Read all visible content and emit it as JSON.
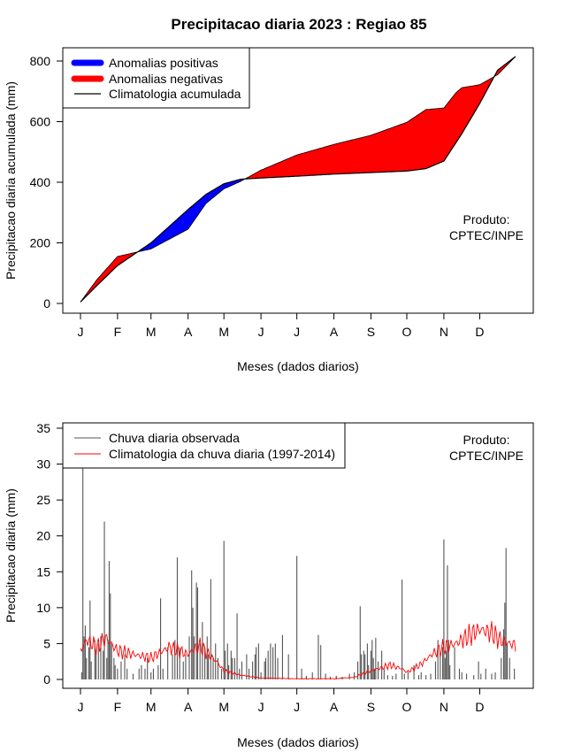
{
  "title": "Precipitacao diaria 2023 : Regiao 85",
  "months": [
    "J",
    "F",
    "M",
    "A",
    "M",
    "J",
    "J",
    "A",
    "S",
    "O",
    "N",
    "D"
  ],
  "chart_data": [
    {
      "type": "area",
      "title": "Precipitacao diaria 2023 : Regiao 85",
      "xlabel": "Meses (dados diarios)",
      "ylabel": "Precipitacao diaria acumulada (mm)",
      "ylim": [
        0,
        800
      ],
      "yticks": [
        0,
        200,
        400,
        600,
        800
      ],
      "legend": [
        {
          "label": "Anomalias positivas",
          "color": "#0000ff"
        },
        {
          "label": "Anomalias negativas",
          "color": "#ff0000"
        },
        {
          "label": "Climatologia acumulada",
          "color": "#000000"
        }
      ],
      "annotation": [
        "Produto:",
        "CPTEC/INPE"
      ],
      "x_day": [
        1,
        15,
        32,
        60,
        91,
        106,
        121,
        135,
        152,
        182,
        213,
        244,
        274,
        290,
        305,
        315,
        320,
        335,
        350,
        365
      ],
      "climatology": [
        5,
        60,
        125,
        200,
        310,
        360,
        395,
        410,
        414,
        420,
        427,
        432,
        437,
        445,
        470,
        530,
        560,
        660,
        770,
        815
      ],
      "observed": [
        5,
        80,
        155,
        180,
        245,
        330,
        378,
        403,
        440,
        490,
        525,
        555,
        598,
        640,
        645,
        695,
        712,
        722,
        755,
        815
      ]
    },
    {
      "type": "bar",
      "xlabel": "Meses (dados diarios)",
      "ylabel": "Precipitacao diaria (mm)",
      "ylim": [
        0,
        35
      ],
      "yticks": [
        0,
        5,
        10,
        15,
        20,
        25,
        30,
        35
      ],
      "legend": [
        {
          "label": "Chuva diaria observada",
          "color": "#555555"
        },
        {
          "label": "Climatologia da chuva diaria (1997-2014)",
          "color": "#ff0000"
        }
      ],
      "annotation": [
        "Produto:",
        "CPTEC/INPE"
      ],
      "rain_events": [
        [
          2,
          1.0
        ],
        [
          3,
          31.0
        ],
        [
          4,
          6.0
        ],
        [
          5,
          7.5
        ],
        [
          6,
          3.0
        ],
        [
          8,
          4.5
        ],
        [
          9,
          11.0
        ],
        [
          10,
          2.5
        ],
        [
          13,
          5.5
        ],
        [
          14,
          3.5
        ],
        [
          16,
          5.0
        ],
        [
          18,
          6.0
        ],
        [
          20,
          4.0
        ],
        [
          21,
          22.0
        ],
        [
          23,
          3.0
        ],
        [
          24,
          5.5
        ],
        [
          25,
          16.5
        ],
        [
          26,
          12.0
        ],
        [
          27,
          5.0
        ],
        [
          29,
          3.0
        ],
        [
          30,
          2.0
        ],
        [
          32,
          1.5
        ],
        [
          35,
          2.5
        ],
        [
          38,
          3.5
        ],
        [
          40,
          1.5
        ],
        [
          45,
          0.8
        ],
        [
          50,
          1.5
        ],
        [
          52,
          2.0
        ],
        [
          55,
          1.5
        ],
        [
          57,
          3.0
        ],
        [
          60,
          1.0
        ],
        [
          62,
          1.5
        ],
        [
          66,
          2.0
        ],
        [
          68,
          11.3
        ],
        [
          70,
          1.5
        ],
        [
          74,
          4.5
        ],
        [
          78,
          3.5
        ],
        [
          80,
          5.5
        ],
        [
          82,
          17.0
        ],
        [
          84,
          4.5
        ],
        [
          87,
          2.5
        ],
        [
          89,
          3.5
        ],
        [
          92,
          6.0
        ],
        [
          94,
          15.2
        ],
        [
          95,
          10.0
        ],
        [
          96,
          6.0
        ],
        [
          98,
          13.5
        ],
        [
          99,
          12.8
        ],
        [
          101,
          5.0
        ],
        [
          103,
          8.0
        ],
        [
          105,
          4.5
        ],
        [
          107,
          6.0
        ],
        [
          108,
          3.5
        ],
        [
          110,
          14.0
        ],
        [
          112,
          3.0
        ],
        [
          114,
          5.0
        ],
        [
          116,
          3.0
        ],
        [
          119,
          1.5
        ],
        [
          121,
          19.3
        ],
        [
          122,
          4.0
        ],
        [
          124,
          5.0
        ],
        [
          125,
          2.0
        ],
        [
          127,
          4.0
        ],
        [
          128,
          3.0
        ],
        [
          130,
          3.0
        ],
        [
          132,
          9.2
        ],
        [
          134,
          1.5
        ],
        [
          136,
          2.5
        ],
        [
          140,
          3.5
        ],
        [
          142,
          1.5
        ],
        [
          145,
          2.5
        ],
        [
          147,
          3.5
        ],
        [
          148,
          4.5
        ],
        [
          150,
          5.0
        ],
        [
          152,
          1.0
        ],
        [
          155,
          2.5
        ],
        [
          156,
          3.0
        ],
        [
          158,
          4.0
        ],
        [
          160,
          5.0
        ],
        [
          162,
          4.5
        ],
        [
          164,
          5.0
        ],
        [
          166,
          3.0
        ],
        [
          170,
          6.2
        ],
        [
          175,
          3.5
        ],
        [
          182,
          17.2
        ],
        [
          186,
          1.5
        ],
        [
          190,
          0.5
        ],
        [
          195,
          1.0
        ],
        [
          200,
          6.2
        ],
        [
          202,
          4.8
        ],
        [
          206,
          0.8
        ],
        [
          210,
          0.4
        ],
        [
          215,
          0.5
        ],
        [
          220,
          0.4
        ],
        [
          226,
          0.8
        ],
        [
          230,
          1.0
        ],
        [
          233,
          2.5
        ],
        [
          235,
          10.2
        ],
        [
          236,
          3.5
        ],
        [
          238,
          4.0
        ],
        [
          239,
          3.5
        ],
        [
          241,
          5.0
        ],
        [
          242,
          2.0
        ],
        [
          244,
          4.0
        ],
        [
          245,
          5.5
        ],
        [
          246,
          3.0
        ],
        [
          247,
          1.5
        ],
        [
          248,
          5.8
        ],
        [
          250,
          2.5
        ],
        [
          253,
          4.0
        ],
        [
          255,
          1.5
        ],
        [
          258,
          0.6
        ],
        [
          262,
          0.5
        ],
        [
          265,
          0.8
        ],
        [
          270,
          13.9
        ],
        [
          272,
          0.8
        ],
        [
          275,
          1.0
        ],
        [
          280,
          2.0
        ],
        [
          284,
          0.6
        ],
        [
          286,
          1.0
        ],
        [
          290,
          0.6
        ],
        [
          294,
          0.8
        ],
        [
          298,
          2.5
        ],
        [
          300,
          5.5
        ],
        [
          302,
          3.5
        ],
        [
          304,
          4.5
        ],
        [
          305,
          19.5
        ],
        [
          306,
          3.0
        ],
        [
          307,
          4.0
        ],
        [
          308,
          15.9
        ],
        [
          309,
          5.5
        ],
        [
          310,
          2.0
        ],
        [
          314,
          4.5
        ],
        [
          318,
          1.5
        ],
        [
          320,
          1.0
        ],
        [
          324,
          0.8
        ],
        [
          330,
          0.6
        ],
        [
          334,
          2.5
        ],
        [
          336,
          0.8
        ],
        [
          340,
          1.5
        ],
        [
          345,
          0.8
        ],
        [
          348,
          1.0
        ],
        [
          353,
          3.0
        ],
        [
          355,
          7.0
        ],
        [
          356,
          10.7
        ],
        [
          357,
          18.3
        ],
        [
          358,
          5.0
        ],
        [
          360,
          3.0
        ],
        [
          364,
          1.5
        ]
      ],
      "climatology_knots": [
        [
          1,
          4.0
        ],
        [
          6,
          5.5
        ],
        [
          15,
          4.5
        ],
        [
          22,
          5.8
        ],
        [
          32,
          4.0
        ],
        [
          45,
          3.5
        ],
        [
          60,
          3.0
        ],
        [
          75,
          4.5
        ],
        [
          91,
          3.5
        ],
        [
          100,
          4.8
        ],
        [
          110,
          3.2
        ],
        [
          115,
          2.5
        ],
        [
          121,
          1.2
        ],
        [
          135,
          0.6
        ],
        [
          152,
          0.2
        ],
        [
          182,
          0.1
        ],
        [
          213,
          0.1
        ],
        [
          230,
          0.3
        ],
        [
          244,
          1.2
        ],
        [
          260,
          2.0
        ],
        [
          270,
          1.5
        ],
        [
          274,
          1.0
        ],
        [
          285,
          2.0
        ],
        [
          295,
          3.5
        ],
        [
          305,
          4.5
        ],
        [
          315,
          5.0
        ],
        [
          325,
          6.0
        ],
        [
          335,
          7.0
        ],
        [
          345,
          6.5
        ],
        [
          352,
          5.5
        ],
        [
          360,
          5.0
        ],
        [
          365,
          4.8
        ]
      ]
    }
  ]
}
